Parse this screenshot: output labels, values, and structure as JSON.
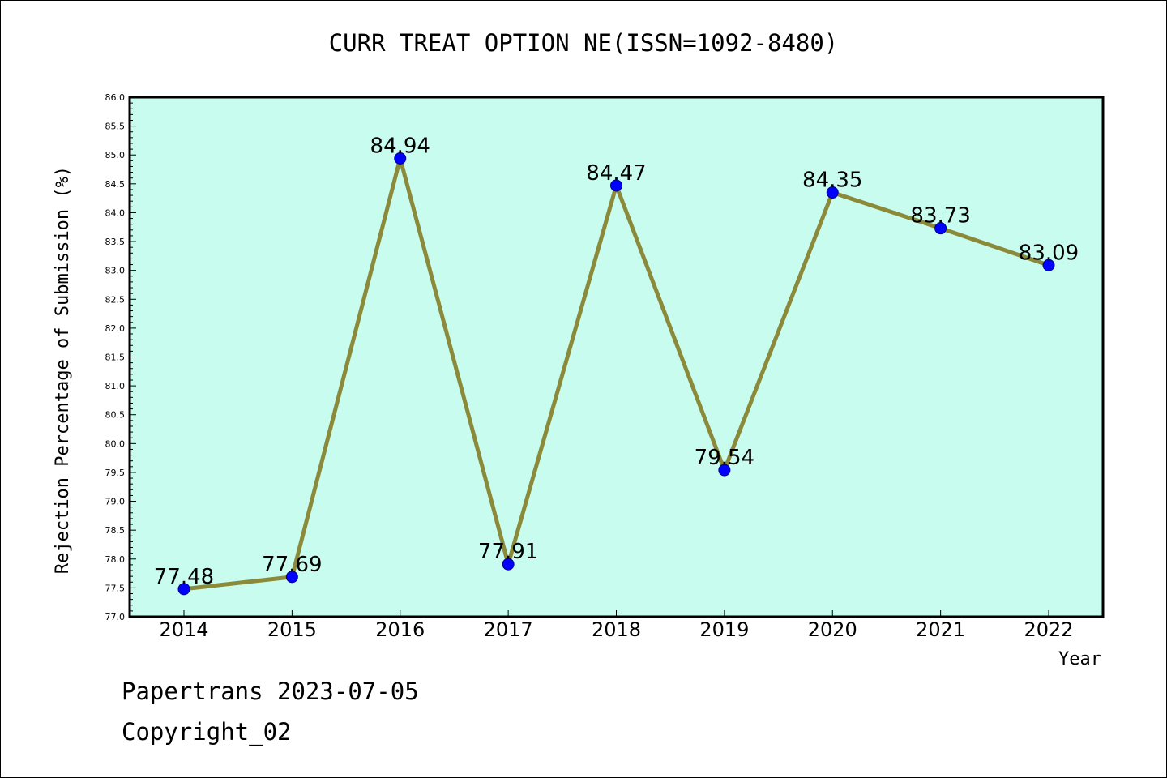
{
  "chart_data": {
    "type": "line",
    "title": "CURR TREAT OPTION NE(ISSN=1092-8480)",
    "xlabel": "Year",
    "ylabel": "Rejection Percentage of Submission (%)",
    "categories": [
      "2014",
      "2015",
      "2016",
      "2017",
      "2018",
      "2019",
      "2020",
      "2021",
      "2022"
    ],
    "series": [
      {
        "values": [
          77.48,
          77.69,
          84.94,
          77.91,
          84.47,
          79.54,
          84.35,
          83.73,
          83.09
        ],
        "data_labels": [
          "77.48",
          "77.69",
          "84.94",
          "77.91",
          "84.47",
          "79.54",
          "84.35",
          "83.73",
          "83.09"
        ]
      }
    ],
    "ylim": [
      77.0,
      86.0
    ],
    "yticks": [
      "77.0",
      "77.5",
      "78.0",
      "78.5",
      "79.0",
      "79.5",
      "80.0",
      "80.5",
      "81.0",
      "81.5",
      "82.0",
      "82.5",
      "83.0",
      "83.5",
      "84.0",
      "84.5",
      "85.0",
      "85.5",
      "86.0"
    ],
    "grid": false,
    "colors": {
      "plot_background": "#c8fcee",
      "line": "#8b8a3a",
      "marker": "#0000ff"
    }
  },
  "footer": {
    "line1": "Papertrans 2023-07-05",
    "line2": "Copyright_02"
  }
}
